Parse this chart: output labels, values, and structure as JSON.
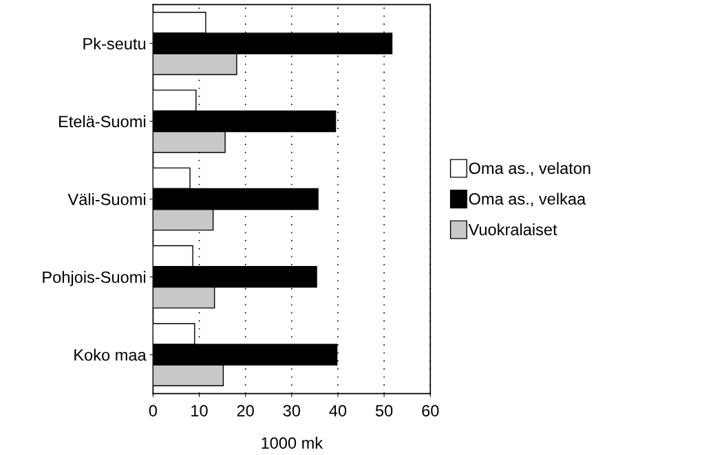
{
  "chart_data": {
    "type": "bar",
    "orientation": "horizontal",
    "xlabel": "1000 mk",
    "categories": [
      "Pk-seutu",
      "Etelä-Suomi",
      "Väli-Suomi",
      "Pohjois-Suomi",
      "Koko maa"
    ],
    "series": [
      {
        "name": "Oma as., velaton",
        "color": "#ffffff",
        "values": [
          11.4,
          9.3,
          8.0,
          8.6,
          9.0
        ]
      },
      {
        "name": "Oma as., velkaa",
        "color": "#000000",
        "values": [
          51.7,
          39.5,
          35.7,
          35.4,
          39.8
        ]
      },
      {
        "name": "Vuokralaiset",
        "color": "#c8c8c8",
        "values": [
          18.1,
          15.6,
          13.0,
          13.3,
          15.2
        ]
      }
    ],
    "xlim": [
      0,
      60
    ],
    "xticks": [
      0,
      10,
      20,
      30,
      40,
      50,
      60
    ],
    "grid": "x",
    "legend": "right"
  }
}
